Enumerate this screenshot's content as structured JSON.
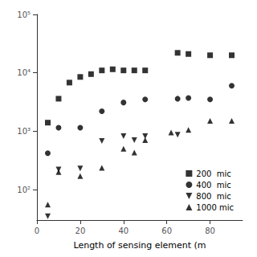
{
  "chart_data": {
    "type": "scatter",
    "xlabel": "Length of sensing element (m",
    "series": [
      {
        "name": "200  mic",
        "marker": "square",
        "x": [
          5,
          10,
          15,
          20,
          25,
          30,
          35,
          40,
          45,
          50,
          65,
          70,
          80,
          90
        ],
        "values": [
          1400,
          3600,
          6800,
          8500,
          9500,
          11000,
          11500,
          11000,
          11000,
          11000,
          22000,
          21000,
          20000,
          20000
        ]
      },
      {
        "name": "400  mic",
        "marker": "circle",
        "x": [
          5,
          10,
          20,
          30,
          40,
          50,
          65,
          70,
          80,
          90
        ],
        "values": [
          420,
          1150,
          1150,
          2200,
          3100,
          3500,
          3600,
          3700,
          3500,
          6000
        ]
      },
      {
        "name": "800  mic",
        "marker": "triangle-down",
        "x": [
          5,
          10,
          20,
          30,
          40,
          45,
          50,
          65
        ],
        "values": [
          35,
          220,
          230,
          680,
          820,
          700,
          820,
          870
        ]
      },
      {
        "name": "1000 mic",
        "marker": "triangle-up",
        "x": [
          5,
          10,
          20,
          30,
          40,
          45,
          50,
          62,
          70,
          80,
          90
        ],
        "values": [
          55,
          200,
          170,
          235,
          500,
          430,
          700,
          950,
          1050,
          1500,
          1500
        ]
      }
    ],
    "color": "black",
    "log": "y",
    "xlim": [
      0,
      95
    ],
    "ylim": [
      30,
      100000
    ],
    "xticks": [
      0,
      20,
      40,
      60,
      80
    ],
    "yticks": [
      {
        "value": 100,
        "label": "10²"
      },
      {
        "value": 1000,
        "label": "10³"
      },
      {
        "value": 10000,
        "label": "10⁴"
      },
      {
        "value": 100000,
        "label": "10⁵"
      }
    ],
    "grid": false,
    "legend": "lower right"
  }
}
